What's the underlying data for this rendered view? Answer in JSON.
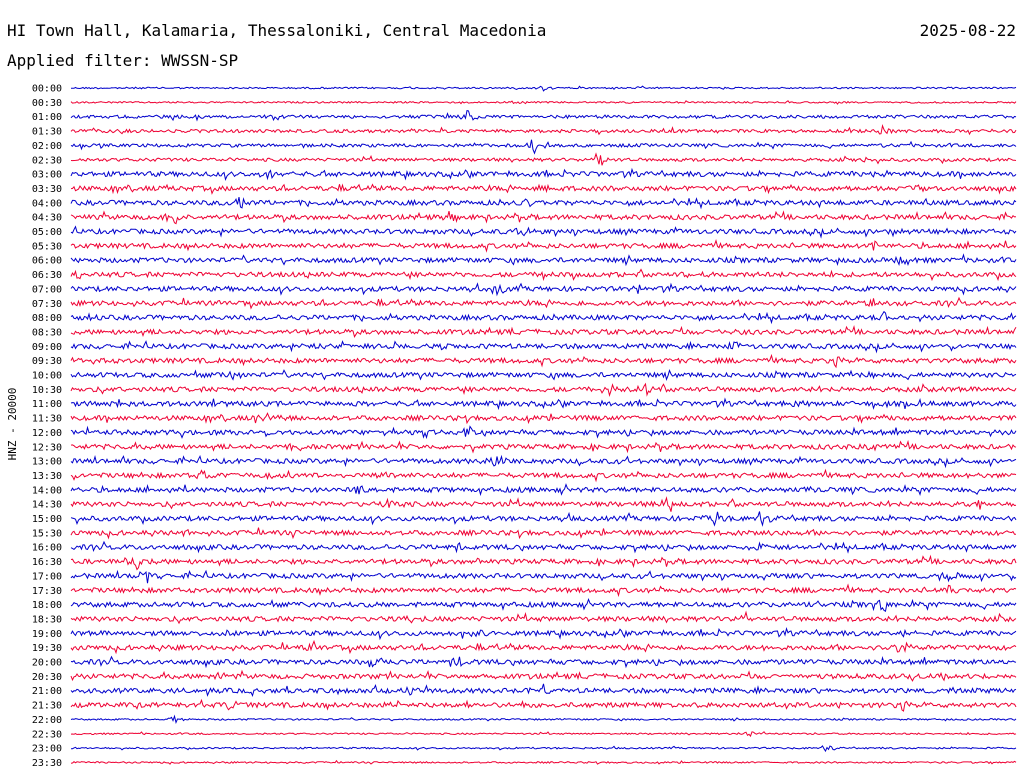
{
  "header": {
    "station": "HI Town Hall, Kalamaria, Thessaloniki, Central Macedonia",
    "date": "2025-08-22",
    "filter": "Applied filter: WWSSN-SP"
  },
  "chart_data": {
    "type": "line",
    "title": "HI Town Hall, Kalamaria, Thessaloniki, Central Macedonia",
    "ylabel": "HNZ - 20000",
    "xlabel": "",
    "grid": false,
    "colors": {
      "even_hour": "#0000cc",
      "half_hour": "#ee0033"
    },
    "rows": [
      {
        "label": "00:00",
        "amp": "quiet",
        "events": [
          {
            "pos": 0.5,
            "amp": "small"
          }
        ]
      },
      {
        "label": "00:30",
        "amp": "quiet",
        "events": [
          {
            "pos": 0.47,
            "amp": "small"
          }
        ]
      },
      {
        "label": "01:00",
        "amp": "low",
        "events": [
          {
            "pos": 0.42,
            "amp": "medium"
          }
        ]
      },
      {
        "label": "01:30",
        "amp": "low",
        "events": [
          {
            "pos": 0.86,
            "amp": "medium"
          }
        ]
      },
      {
        "label": "02:00",
        "amp": "low",
        "events": [
          {
            "pos": 0.49,
            "amp": "large"
          },
          {
            "pos": 0.86,
            "amp": "small"
          }
        ]
      },
      {
        "label": "02:30",
        "amp": "low",
        "events": [
          {
            "pos": 0.56,
            "amp": "medium"
          },
          {
            "pos": 0.84,
            "amp": "small"
          }
        ]
      },
      {
        "label": "03:00",
        "amp": "medium",
        "events": [
          {
            "pos": 0.21,
            "amp": "large"
          },
          {
            "pos": 0.86,
            "amp": "small"
          }
        ]
      },
      {
        "label": "03:30",
        "amp": "medium",
        "events": [
          {
            "pos": 0.5,
            "amp": "small"
          },
          {
            "pos": 0.9,
            "amp": "small"
          }
        ]
      },
      {
        "label": "04:00",
        "amp": "medium",
        "events": [
          {
            "pos": 0.18,
            "amp": "medium"
          },
          {
            "pos": 0.48,
            "amp": "medium"
          }
        ]
      },
      {
        "label": "04:30",
        "amp": "medium",
        "events": [
          {
            "pos": 0.11,
            "amp": "medium"
          },
          {
            "pos": 0.4,
            "amp": "small"
          }
        ]
      },
      {
        "label": "05:00",
        "amp": "medium",
        "events": [
          {
            "pos": 0.48,
            "amp": "medium"
          },
          {
            "pos": 0.88,
            "amp": "medium"
          }
        ]
      },
      {
        "label": "05:30",
        "amp": "medium",
        "events": [
          {
            "pos": 0.85,
            "amp": "medium"
          }
        ]
      },
      {
        "label": "06:00",
        "amp": "medium",
        "events": [
          {
            "pos": 0.88,
            "amp": "medium"
          }
        ]
      },
      {
        "label": "06:30",
        "amp": "medium",
        "events": [
          {
            "pos": 0.01,
            "amp": "small"
          },
          {
            "pos": 0.66,
            "amp": "small"
          }
        ]
      },
      {
        "label": "07:00",
        "amp": "medium",
        "events": [
          {
            "pos": 0.45,
            "amp": "medium"
          },
          {
            "pos": 0.6,
            "amp": "small"
          }
        ]
      },
      {
        "label": "07:30",
        "amp": "medium",
        "events": [
          {
            "pos": 0.17,
            "amp": "small"
          },
          {
            "pos": 0.85,
            "amp": "small"
          }
        ]
      },
      {
        "label": "08:00",
        "amp": "medium",
        "events": [
          {
            "pos": 0.02,
            "amp": "small"
          },
          {
            "pos": 0.86,
            "amp": "medium"
          }
        ]
      },
      {
        "label": "08:30",
        "amp": "medium",
        "events": [
          {
            "pos": 0.7,
            "amp": "small"
          }
        ]
      },
      {
        "label": "09:00",
        "amp": "medium",
        "events": [
          {
            "pos": 0.26,
            "amp": "small"
          },
          {
            "pos": 0.7,
            "amp": "small"
          }
        ]
      },
      {
        "label": "09:30",
        "amp": "medium",
        "events": [
          {
            "pos": 0.02,
            "amp": "small"
          },
          {
            "pos": 0.81,
            "amp": "medium"
          }
        ]
      },
      {
        "label": "10:00",
        "amp": "medium",
        "events": [
          {
            "pos": 0.17,
            "amp": "small"
          },
          {
            "pos": 0.84,
            "amp": "small"
          }
        ]
      },
      {
        "label": "10:30",
        "amp": "medium",
        "events": [
          {
            "pos": 0.57,
            "amp": "medium"
          },
          {
            "pos": 0.61,
            "amp": "medium"
          }
        ]
      },
      {
        "label": "11:00",
        "amp": "medium",
        "events": [
          {
            "pos": 0.05,
            "amp": "medium"
          },
          {
            "pos": 0.77,
            "amp": "small"
          }
        ]
      },
      {
        "label": "11:30",
        "amp": "medium",
        "events": [
          {
            "pos": 0.21,
            "amp": "medium"
          }
        ]
      },
      {
        "label": "12:00",
        "amp": "medium",
        "events": [
          {
            "pos": 0.42,
            "amp": "medium"
          }
        ]
      },
      {
        "label": "12:30",
        "amp": "medium",
        "events": [
          {
            "pos": 0.24,
            "amp": "small"
          },
          {
            "pos": 0.85,
            "amp": "small"
          }
        ]
      },
      {
        "label": "13:00",
        "amp": "medium",
        "events": [
          {
            "pos": 0.45,
            "amp": "medium"
          }
        ]
      },
      {
        "label": "13:30",
        "amp": "medium",
        "events": [
          {
            "pos": 0.14,
            "amp": "medium"
          },
          {
            "pos": 0.33,
            "amp": "small"
          }
        ]
      },
      {
        "label": "14:00",
        "amp": "medium",
        "events": [
          {
            "pos": 0.31,
            "amp": "medium"
          },
          {
            "pos": 0.78,
            "amp": "small"
          }
        ]
      },
      {
        "label": "14:30",
        "amp": "medium",
        "events": [
          {
            "pos": 0.34,
            "amp": "medium"
          },
          {
            "pos": 0.63,
            "amp": "medium"
          },
          {
            "pos": 0.96,
            "amp": "medium"
          }
        ]
      },
      {
        "label": "15:00",
        "amp": "medium",
        "events": [
          {
            "pos": 0.68,
            "amp": "medium"
          },
          {
            "pos": 0.73,
            "amp": "medium"
          }
        ]
      },
      {
        "label": "15:30",
        "amp": "medium",
        "events": [
          {
            "pos": 0.12,
            "amp": "small"
          },
          {
            "pos": 0.73,
            "amp": "medium"
          }
        ]
      },
      {
        "label": "16:00",
        "amp": "medium",
        "events": [
          {
            "pos": 0.41,
            "amp": "small"
          },
          {
            "pos": 0.73,
            "amp": "medium"
          }
        ]
      },
      {
        "label": "16:30",
        "amp": "medium",
        "events": [
          {
            "pos": 0.07,
            "amp": "medium"
          },
          {
            "pos": 0.43,
            "amp": "small"
          }
        ]
      },
      {
        "label": "17:00",
        "amp": "medium",
        "events": [
          {
            "pos": 0.08,
            "amp": "medium"
          },
          {
            "pos": 0.73,
            "amp": "medium"
          },
          {
            "pos": 0.93,
            "amp": "small"
          }
        ]
      },
      {
        "label": "17:30",
        "amp": "medium",
        "events": [
          {
            "pos": 0.93,
            "amp": "medium"
          }
        ]
      },
      {
        "label": "18:00",
        "amp": "medium",
        "events": [
          {
            "pos": 0.79,
            "amp": "medium"
          },
          {
            "pos": 0.86,
            "amp": "medium"
          }
        ]
      },
      {
        "label": "18:30",
        "amp": "medium",
        "events": [
          {
            "pos": 0.36,
            "amp": "small"
          },
          {
            "pos": 0.71,
            "amp": "small"
          }
        ]
      },
      {
        "label": "19:00",
        "amp": "medium",
        "events": [
          {
            "pos": 0.17,
            "amp": "small"
          },
          {
            "pos": 0.43,
            "amp": "small"
          },
          {
            "pos": 0.88,
            "amp": "small"
          }
        ]
      },
      {
        "label": "19:30",
        "amp": "medium",
        "events": [
          {
            "pos": 0.26,
            "amp": "medium"
          },
          {
            "pos": 0.88,
            "amp": "medium"
          }
        ]
      },
      {
        "label": "20:00",
        "amp": "medium",
        "events": [
          {
            "pos": 0.32,
            "amp": "medium"
          },
          {
            "pos": 0.41,
            "amp": "medium"
          }
        ]
      },
      {
        "label": "20:30",
        "amp": "medium",
        "events": [
          {
            "pos": 0.16,
            "amp": "medium"
          },
          {
            "pos": 0.43,
            "amp": "small"
          }
        ]
      },
      {
        "label": "21:00",
        "amp": "medium",
        "events": [
          {
            "pos": 0.36,
            "amp": "medium"
          },
          {
            "pos": 0.5,
            "amp": "medium"
          }
        ]
      },
      {
        "label": "21:30",
        "amp": "medium",
        "events": [
          {
            "pos": 0.17,
            "amp": "medium"
          },
          {
            "pos": 0.34,
            "amp": "medium"
          },
          {
            "pos": 0.88,
            "amp": "medium"
          }
        ]
      },
      {
        "label": "22:00",
        "amp": "quiet",
        "events": [
          {
            "pos": 0.11,
            "amp": "small"
          }
        ]
      },
      {
        "label": "22:30",
        "amp": "quiet",
        "events": [
          {
            "pos": 0.72,
            "amp": "small"
          }
        ]
      },
      {
        "label": "23:00",
        "amp": "quiet",
        "events": [
          {
            "pos": 0.8,
            "amp": "small"
          }
        ]
      },
      {
        "label": "23:30",
        "amp": "quiet",
        "events": []
      }
    ]
  }
}
